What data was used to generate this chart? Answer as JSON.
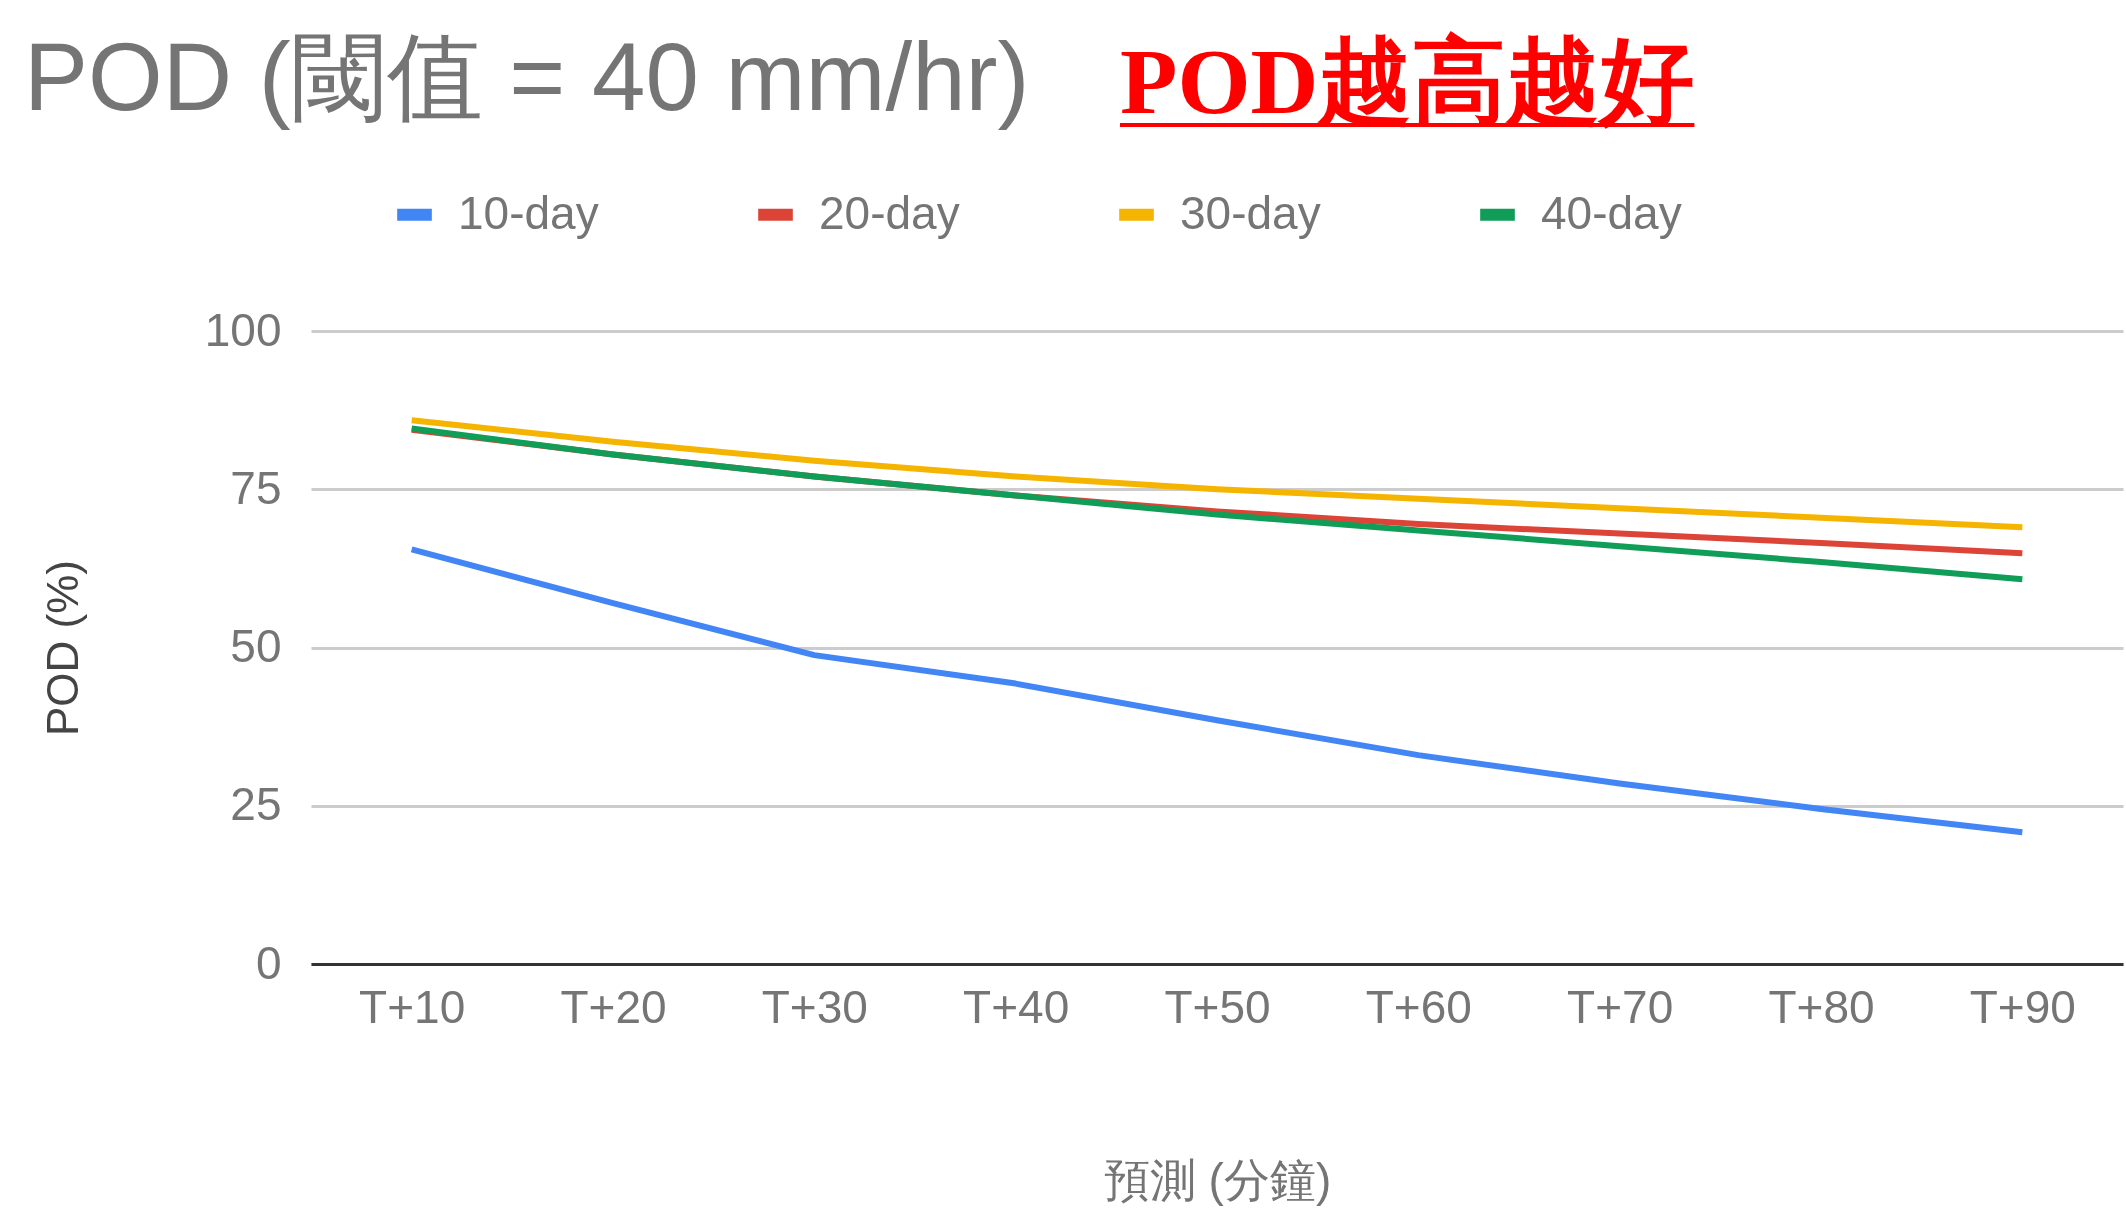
{
  "chart_data": {
    "type": "line",
    "title": "POD (閾值 = 40 mm/hr)",
    "annotations": [
      "POD越高越好"
    ],
    "xlabel": "預測 (分鐘)",
    "ylabel": "POD (%)",
    "categories": [
      "T+10",
      "T+20",
      "T+30",
      "T+40",
      "T+50",
      "T+60",
      "T+70",
      "T+80",
      "T+90"
    ],
    "series": [
      {
        "name": "10-day",
        "color": "#4285f4",
        "values": [
          65.5,
          57,
          48.8,
          44.3,
          38.5,
          33,
          28.5,
          24.5,
          20.8
        ]
      },
      {
        "name": "20-day",
        "color": "#db4437",
        "values": [
          84.4,
          80.5,
          77,
          74,
          71.5,
          69.5,
          68,
          66.5,
          64.9
        ]
      },
      {
        "name": "30-day",
        "color": "#f4b400",
        "values": [
          85.9,
          82.5,
          79.5,
          77,
          75,
          73.5,
          72,
          70.5,
          69
        ]
      },
      {
        "name": "40-day",
        "color": "#0f9d58",
        "values": [
          84.6,
          80.5,
          77,
          74,
          71,
          68.5,
          66,
          63.5,
          60.8
        ]
      }
    ],
    "ylim": [
      0,
      100
    ],
    "yticks": [
      0,
      25,
      50,
      75,
      100
    ],
    "grid": "y",
    "legend": "top",
    "marker": "none",
    "line_style": "solid"
  }
}
